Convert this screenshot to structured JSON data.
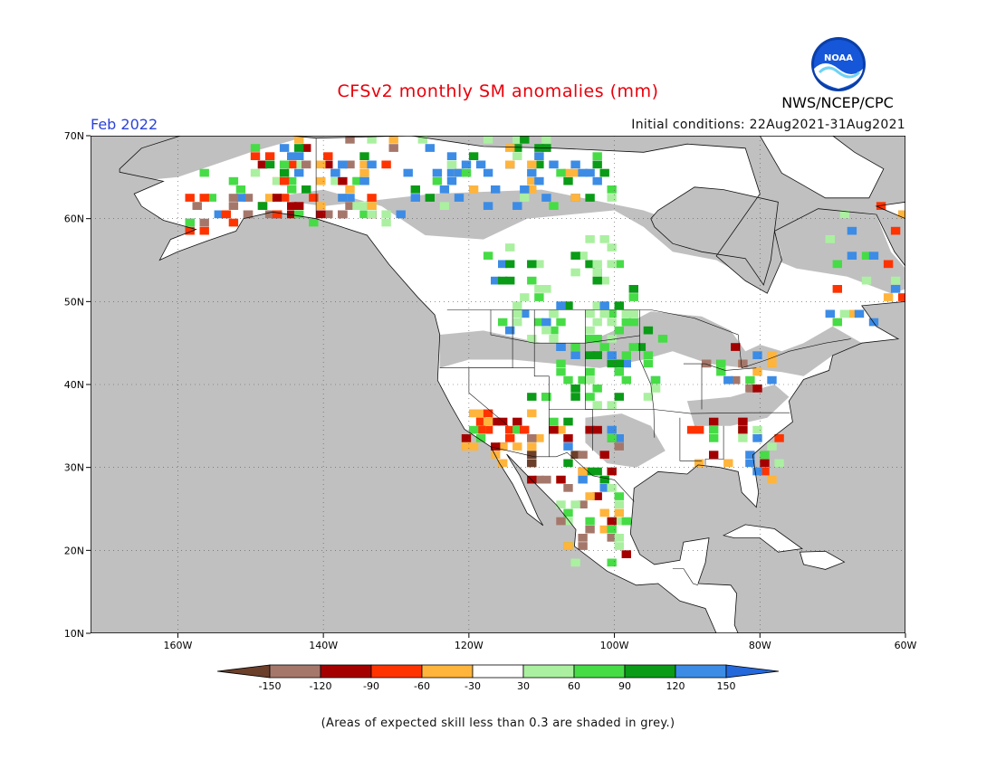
{
  "title": "CFSv2 monthly SM anomalies (mm)",
  "valid_month": "Feb 2022",
  "initial_conditions": "Initial conditions: 22Aug2021-31Aug2021",
  "agency": "NWS/NCEP/CPC",
  "logo_text": "NOAA",
  "footnote": "(Areas of expected skill less than 0.3 are shaded in grey.)",
  "map": {
    "lon_range": [
      -172,
      -60
    ],
    "lat_range": [
      10,
      70
    ],
    "lat_labels": [
      "70N",
      "60N",
      "50N",
      "40N",
      "30N",
      "20N",
      "10N"
    ],
    "lon_labels": [
      "160W",
      "140W",
      "120W",
      "100W",
      "80W",
      "60W"
    ],
    "background_color": "#c0c0c0"
  },
  "legend": {
    "ticks": [
      "-150",
      "-120",
      "-90",
      "-60",
      "-30",
      "30",
      "60",
      "90",
      "120",
      "150"
    ],
    "colors": [
      "#6b3f2a",
      "#a5776b",
      "#a50000",
      "#ff3300",
      "#ffb43c",
      "#ffffff",
      "#aaf0a0",
      "#46dc46",
      "#0a9b17",
      "#3c8ce6",
      "#2468dc"
    ]
  }
}
